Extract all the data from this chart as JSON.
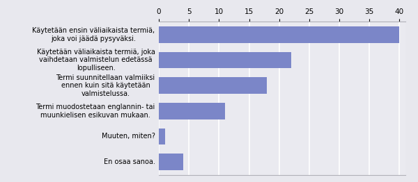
{
  "categories": [
    "En osaa sanoa.",
    "Muuten, miten?",
    "Termi muodostetaan englannin- tai\nmuunkielisen esikuvan mukaan.",
    "Termi suunnitellaan valmiiksi\nennen kuin sitä käytetään\nvalmistelussa.",
    "Käytetään väliaikaista termiä, joka\nvaihdetaan valmistelun edetässä\nlopulliseen.",
    "Käytetään ensin väliaikaista termiä,\njoka voi jäädä pysyväksi."
  ],
  "values": [
    4,
    1,
    11,
    18,
    22,
    40
  ],
  "bar_color": "#7b86c8",
  "figure_facecolor": "#e8e8ee",
  "axes_facecolor": "#eaeaf0",
  "xlim": [
    0,
    41
  ],
  "xticks": [
    0,
    5,
    10,
    15,
    20,
    25,
    30,
    35,
    40
  ],
  "tick_fontsize": 7.5,
  "label_fontsize": 7.0,
  "bar_height": 0.65
}
